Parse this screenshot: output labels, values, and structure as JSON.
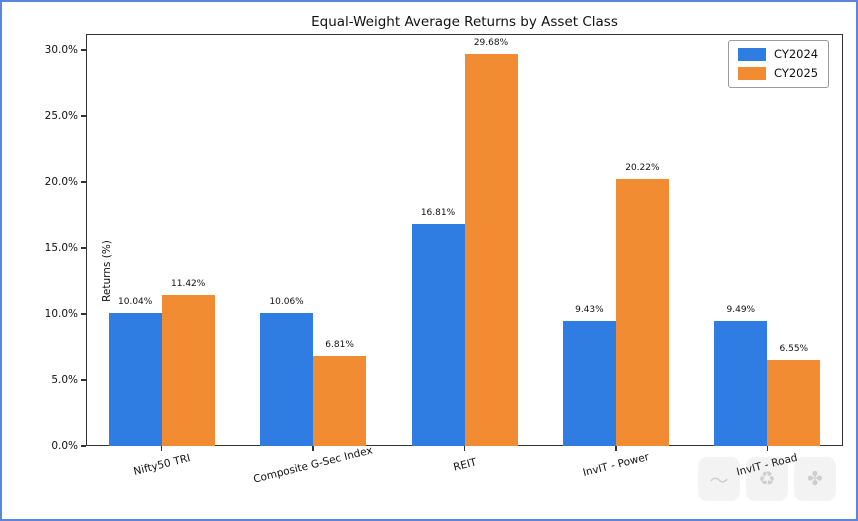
{
  "chart_data": {
    "type": "bar",
    "title": "Equal-Weight Average Returns by Asset Class",
    "ylabel": "Returns (%)",
    "xlabel": "",
    "categories": [
      "Nifty50 TRI",
      "Composite G-Sec Index",
      "REIT",
      "InvIT - Power",
      "InvIT - Road"
    ],
    "series": [
      {
        "name": "CY2024",
        "color": "#2f7ce3",
        "values": [
          10.04,
          10.06,
          16.81,
          9.43,
          9.49
        ],
        "value_labels": [
          "10.04%",
          "10.06%",
          "16.81%",
          "9.43%",
          "9.49%"
        ]
      },
      {
        "name": "CY2025",
        "color": "#f18c33",
        "values": [
          11.42,
          6.81,
          29.68,
          20.22,
          6.55
        ],
        "value_labels": [
          "11.42%",
          "6.81%",
          "29.68%",
          "20.22%",
          "6.55%"
        ]
      }
    ],
    "yticks": [
      "0.0%",
      "5.0%",
      "10.0%",
      "15.0%",
      "20.0%",
      "25.0%",
      "30.0%"
    ],
    "ytick_values": [
      0,
      5,
      10,
      15,
      20,
      25,
      30
    ],
    "ylim": [
      0,
      31.2
    ],
    "grid": false,
    "legend_position": "upper right"
  },
  "watermark": {
    "icons": [
      {
        "name": "scribble-icon",
        "glyph": "〜"
      },
      {
        "name": "shapes-triangle-icon",
        "glyph": "♻"
      },
      {
        "name": "clover-plus-icon",
        "glyph": "✤"
      }
    ]
  }
}
